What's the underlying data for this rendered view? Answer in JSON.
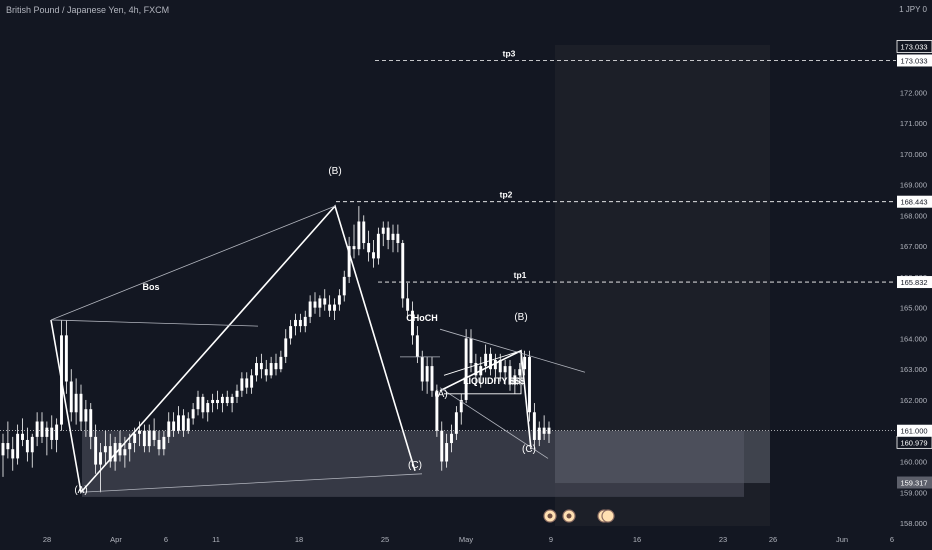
{
  "header": {
    "title": "British Pound / Japanese Yen, 4h, FXCM",
    "unit": "1 JPY 0"
  },
  "colors": {
    "background": "#131722",
    "up": "#ffffff",
    "down": "#ffffff",
    "zone": "#434651",
    "zone_dark": "#1c1f28",
    "axis_text": "#b2b5be",
    "label_bg": "#ffffff",
    "label_text": "#131722"
  },
  "chart_data": {
    "type": "candlestick",
    "title": "British Pound / Japanese Yen, 4h, FXCM",
    "y_axis": {
      "range": [
        157.7,
        174.2
      ],
      "ticks": [
        158.0,
        159.0,
        160.0,
        161.0,
        162.0,
        163.0,
        164.0,
        165.0,
        166.0,
        167.0,
        168.0,
        169.0,
        170.0,
        171.0,
        172.0,
        173.0
      ],
      "tick_labels": [
        "158.000",
        "159.000",
        "160.000",
        "161.000",
        "162.000",
        "163.000",
        "164.000",
        "165.000",
        "166.000",
        "167.000",
        "168.000",
        "169.000",
        "170.000",
        "171.000",
        "172.000",
        "173.000"
      ]
    },
    "x_axis": {
      "tick_labels": [
        "28",
        "Apr",
        "6",
        "11",
        "18",
        "25",
        "May",
        "9",
        "16",
        "23",
        "26",
        "Jun",
        "6"
      ]
    },
    "price_labels": [
      {
        "value": 173.033,
        "text": "173.033",
        "style": "dark"
      },
      {
        "value": 173.033,
        "text": "173.033",
        "style": "light"
      },
      {
        "value": 168.443,
        "text": "168.443",
        "style": "light"
      },
      {
        "value": 165.832,
        "text": "165.832",
        "style": "light"
      },
      {
        "value": 161.0,
        "text": "161.000",
        "style": "light"
      },
      {
        "value": 160.979,
        "text": "160.979",
        "style": "dark"
      },
      {
        "value": 159.317,
        "text": "159.317",
        "style": "grey"
      }
    ],
    "targets": [
      {
        "name": "tp3",
        "value": 173.033
      },
      {
        "name": "tp2",
        "value": 168.443
      },
      {
        "name": "tp1",
        "value": 165.832
      }
    ],
    "annotations": [
      "Bos",
      "(A)",
      "(B)",
      "(C)",
      "CHoCH",
      "(A)",
      "(B)",
      "(C)",
      "LIQUIDITY $$$"
    ],
    "pattern_points": [
      {
        "label": "start",
        "value": 164.6
      },
      {
        "label": "(A)",
        "value": 159.0
      },
      {
        "label": "(B)",
        "value": 168.3
      },
      {
        "label": "(C)",
        "value": 159.7
      },
      {
        "label": "(A)",
        "value": 162.3
      },
      {
        "label": "(B)",
        "value": 163.6
      },
      {
        "label": "(C)",
        "value": 160.4
      }
    ],
    "zones": [
      {
        "name": "demand",
        "from": 158.85,
        "to": 161.0
      },
      {
        "name": "projection",
        "from": 159.3,
        "to": 161.0
      }
    ],
    "candles_ohlc": [
      [
        160.2,
        160.9,
        159.5,
        160.6
      ],
      [
        160.6,
        161.3,
        160.1,
        160.4
      ],
      [
        160.4,
        160.8,
        159.7,
        160.1
      ],
      [
        160.1,
        161.2,
        159.9,
        160.9
      ],
      [
        160.9,
        161.4,
        160.5,
        160.7
      ],
      [
        160.7,
        161.1,
        160.0,
        160.3
      ],
      [
        160.3,
        160.9,
        159.8,
        160.8
      ],
      [
        160.8,
        161.6,
        160.5,
        161.3
      ],
      [
        161.3,
        161.6,
        160.6,
        160.8
      ],
      [
        160.8,
        161.3,
        160.2,
        161.1
      ],
      [
        161.1,
        161.5,
        160.4,
        160.7
      ],
      [
        160.7,
        161.4,
        160.3,
        161.2
      ],
      [
        161.2,
        164.6,
        161.0,
        164.1
      ],
      [
        164.1,
        164.6,
        162.2,
        162.6
      ],
      [
        162.6,
        163.0,
        161.3,
        161.6
      ],
      [
        161.6,
        162.7,
        161.2,
        162.2
      ],
      [
        162.2,
        162.5,
        161.0,
        161.3
      ],
      [
        161.3,
        162.0,
        160.8,
        161.7
      ],
      [
        161.7,
        161.9,
        160.4,
        160.8
      ],
      [
        160.8,
        161.2,
        159.6,
        159.9
      ],
      [
        159.9,
        160.6,
        159.0,
        160.3
      ],
      [
        160.3,
        161.0,
        159.9,
        160.5
      ],
      [
        160.5,
        160.9,
        159.8,
        160.0
      ],
      [
        160.0,
        160.8,
        159.7,
        160.6
      ],
      [
        160.6,
        161.0,
        160.0,
        160.2
      ],
      [
        160.2,
        160.8,
        159.8,
        160.4
      ],
      [
        160.4,
        160.9,
        160.0,
        160.6
      ],
      [
        160.6,
        161.1,
        160.3,
        160.9
      ],
      [
        160.9,
        161.3,
        160.5,
        161.0
      ],
      [
        161.0,
        161.2,
        160.3,
        160.5
      ],
      [
        160.5,
        161.2,
        160.3,
        161.0
      ],
      [
        161.0,
        161.4,
        160.5,
        160.7
      ],
      [
        160.7,
        161.0,
        160.2,
        160.4
      ],
      [
        160.4,
        161.0,
        160.2,
        160.8
      ],
      [
        160.8,
        161.6,
        160.6,
        161.3
      ],
      [
        161.3,
        161.6,
        160.8,
        161.0
      ],
      [
        161.0,
        161.8,
        160.9,
        161.5
      ],
      [
        161.5,
        161.7,
        160.8,
        161.0
      ],
      [
        161.0,
        161.6,
        160.9,
        161.4
      ],
      [
        161.4,
        161.9,
        161.2,
        161.7
      ],
      [
        161.7,
        162.3,
        161.5,
        162.1
      ],
      [
        162.1,
        162.2,
        161.4,
        161.6
      ],
      [
        161.6,
        162.0,
        161.3,
        161.9
      ],
      [
        161.9,
        162.2,
        161.6,
        162.0
      ],
      [
        162.0,
        162.3,
        161.7,
        161.9
      ],
      [
        161.9,
        162.2,
        161.6,
        162.1
      ],
      [
        162.1,
        162.3,
        161.8,
        161.9
      ],
      [
        161.9,
        162.2,
        161.6,
        162.1
      ],
      [
        162.1,
        162.5,
        161.9,
        162.3
      ],
      [
        162.3,
        162.9,
        162.1,
        162.7
      ],
      [
        162.7,
        162.9,
        162.2,
        162.4
      ],
      [
        162.4,
        163.0,
        162.2,
        162.8
      ],
      [
        162.8,
        163.4,
        162.6,
        163.2
      ],
      [
        163.2,
        163.5,
        162.7,
        163.0
      ],
      [
        163.0,
        163.3,
        162.6,
        162.8
      ],
      [
        162.8,
        163.4,
        162.7,
        163.2
      ],
      [
        163.2,
        163.5,
        162.8,
        163.0
      ],
      [
        163.0,
        163.6,
        162.9,
        163.4
      ],
      [
        163.4,
        164.3,
        163.2,
        164.0
      ],
      [
        164.0,
        164.6,
        163.8,
        164.4
      ],
      [
        164.4,
        164.8,
        164.1,
        164.6
      ],
      [
        164.6,
        164.8,
        164.2,
        164.4
      ],
      [
        164.4,
        164.9,
        164.2,
        164.7
      ],
      [
        164.7,
        165.4,
        164.5,
        165.2
      ],
      [
        165.2,
        165.5,
        164.8,
        165.0
      ],
      [
        165.0,
        165.4,
        164.7,
        165.3
      ],
      [
        165.3,
        165.6,
        164.9,
        165.1
      ],
      [
        165.1,
        165.4,
        164.7,
        164.9
      ],
      [
        164.9,
        165.3,
        164.6,
        165.1
      ],
      [
        165.1,
        165.6,
        164.9,
        165.4
      ],
      [
        165.4,
        166.2,
        165.2,
        166.0
      ],
      [
        166.0,
        167.3,
        165.8,
        167.0
      ],
      [
        167.0,
        167.7,
        166.6,
        166.9
      ],
      [
        166.9,
        168.3,
        166.7,
        167.8
      ],
      [
        167.8,
        168.0,
        166.9,
        167.1
      ],
      [
        167.1,
        167.5,
        166.5,
        166.8
      ],
      [
        166.8,
        167.2,
        166.3,
        166.6
      ],
      [
        166.6,
        167.6,
        166.4,
        167.4
      ],
      [
        167.4,
        167.8,
        167.0,
        167.6
      ],
      [
        167.6,
        167.8,
        166.9,
        167.2
      ],
      [
        167.2,
        167.7,
        166.8,
        167.4
      ],
      [
        167.4,
        167.7,
        166.8,
        167.1
      ],
      [
        167.1,
        167.2,
        165.0,
        165.3
      ],
      [
        165.3,
        165.8,
        164.6,
        164.9
      ],
      [
        164.9,
        165.2,
        163.8,
        164.1
      ],
      [
        164.1,
        164.4,
        163.2,
        163.4
      ],
      [
        163.4,
        163.6,
        162.3,
        162.6
      ],
      [
        162.6,
        163.4,
        162.2,
        163.1
      ],
      [
        163.1,
        163.4,
        162.1,
        162.3
      ],
      [
        162.3,
        162.5,
        160.8,
        161.0
      ],
      [
        161.0,
        161.3,
        159.7,
        160.0
      ],
      [
        160.0,
        160.9,
        159.8,
        160.6
      ],
      [
        160.6,
        161.2,
        160.3,
        160.9
      ],
      [
        160.9,
        161.8,
        160.7,
        161.6
      ],
      [
        161.6,
        162.2,
        161.2,
        162.0
      ],
      [
        162.0,
        164.3,
        161.9,
        164.0
      ],
      [
        164.0,
        164.3,
        162.9,
        163.2
      ],
      [
        163.2,
        163.5,
        162.5,
        162.8
      ],
      [
        162.8,
        163.4,
        162.4,
        163.1
      ],
      [
        163.1,
        163.8,
        162.9,
        163.5
      ],
      [
        163.5,
        163.7,
        162.8,
        163.0
      ],
      [
        163.0,
        163.5,
        162.6,
        163.3
      ],
      [
        163.3,
        163.5,
        162.6,
        162.9
      ],
      [
        162.9,
        163.3,
        162.5,
        163.1
      ],
      [
        163.1,
        163.3,
        162.3,
        162.5
      ],
      [
        162.5,
        163.0,
        162.2,
        162.8
      ],
      [
        162.8,
        163.2,
        162.5,
        163.0
      ],
      [
        163.0,
        163.6,
        162.8,
        163.4
      ],
      [
        163.4,
        163.6,
        161.3,
        161.6
      ],
      [
        161.6,
        161.9,
        160.4,
        160.7
      ],
      [
        160.7,
        161.3,
        160.5,
        161.1
      ],
      [
        161.1,
        161.5,
        160.7,
        160.9
      ],
      [
        160.9,
        161.3,
        160.6,
        161.1
      ]
    ]
  }
}
